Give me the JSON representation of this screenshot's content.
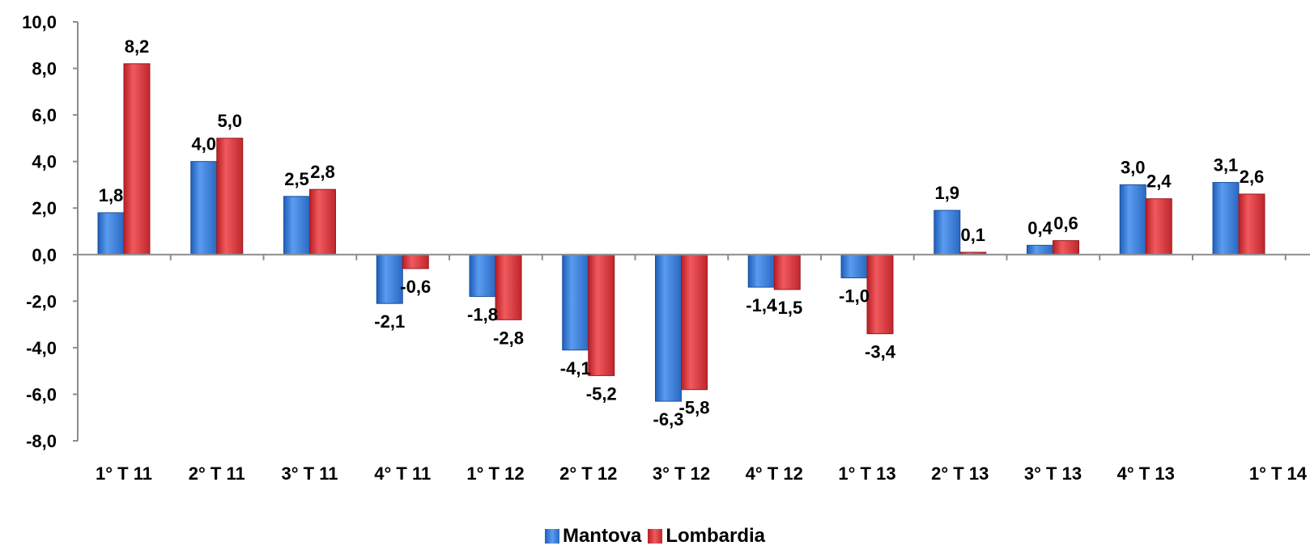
{
  "chart_data": {
    "type": "bar",
    "categories": [
      "1° T 11",
      "2° T 11",
      "3° T 11",
      "4° T 11",
      "1° T 12",
      "2° T 12",
      "3° T 12",
      "4° T 12",
      "1° T 13",
      "2° T 13",
      "3° T 13",
      "4° T 13",
      "1° T 14"
    ],
    "series": [
      {
        "name": "Mantova",
        "color": "#3a7fd5",
        "values": [
          1.8,
          4.0,
          2.5,
          -2.1,
          -1.8,
          -4.1,
          -6.3,
          -1.4,
          -1.0,
          1.9,
          0.4,
          3.0,
          3.1
        ],
        "labels": [
          "1,8",
          "4,0",
          "2,5",
          "-2,1",
          "-1,8",
          "-4,1",
          "-6,3",
          "-1,4",
          "-1,0",
          "1,9",
          "0,4",
          "3,0",
          "3,1"
        ]
      },
      {
        "name": "Lombardia",
        "color": "#d8343a",
        "values": [
          8.2,
          5.0,
          2.8,
          -0.6,
          -2.8,
          -5.2,
          -5.8,
          -1.5,
          -3.4,
          0.1,
          0.6,
          2.4,
          2.6
        ],
        "labels": [
          "8,2",
          "5,0",
          "2,8",
          "-0,6",
          "-2,8",
          "-5,2",
          "-5,8",
          "-1,5",
          "-3,4",
          "0,1",
          "0,6",
          "2,4",
          "2,6"
        ]
      }
    ],
    "ylim": [
      -8,
      10
    ],
    "yticks": [
      "10,0",
      "8,0",
      "6,0",
      "4,0",
      "2,0",
      "0,0",
      "-2,0",
      "-4,0",
      "-6,0",
      "-8,0"
    ],
    "grid": false,
    "legend_position": "bottom",
    "title": "",
    "xlabel": "",
    "ylabel": ""
  }
}
